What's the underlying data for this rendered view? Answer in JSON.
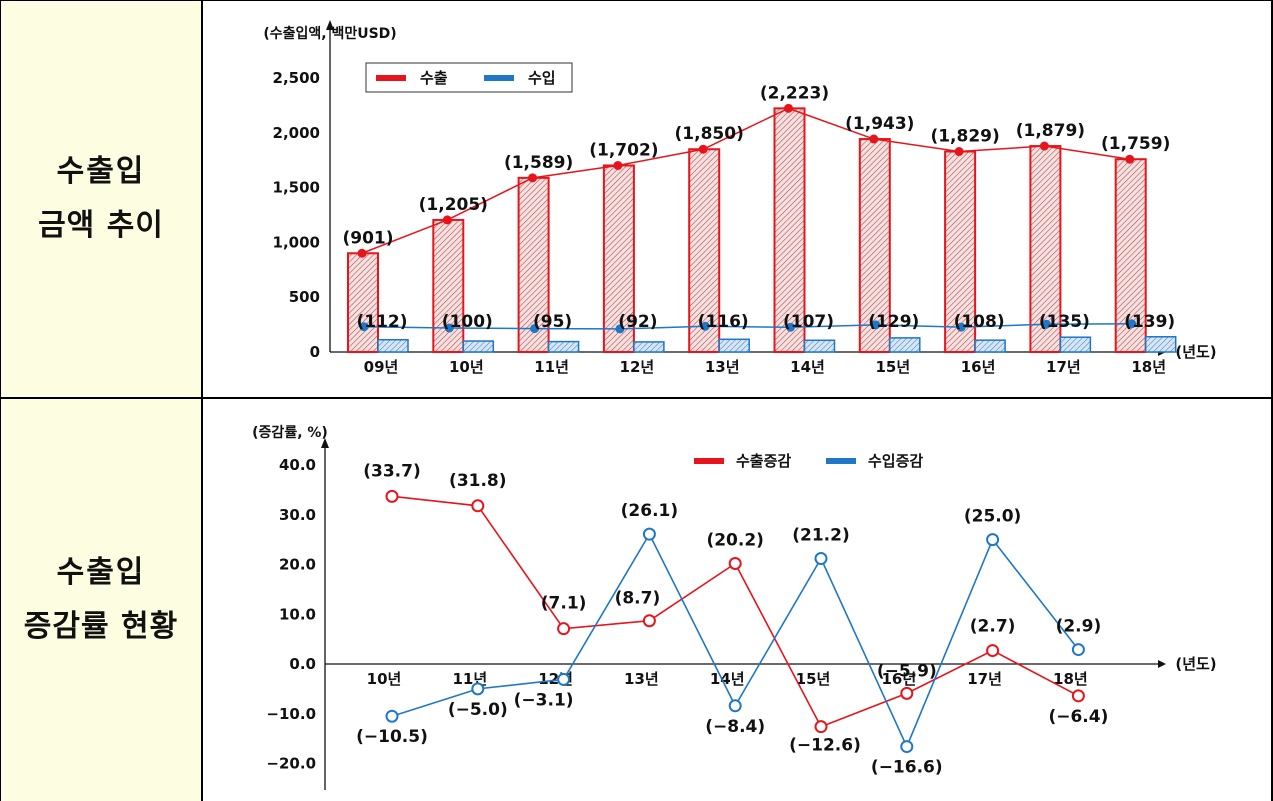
{
  "rows": [
    {
      "label_line1": "수출입",
      "label_line2": "금액  추이"
    },
    {
      "label_line1": "수출입",
      "label_line2": "증감률  현황"
    }
  ],
  "chart_data": [
    {
      "type": "bar",
      "unit_label": "(수출입액, 백만USD)",
      "x_axis_label": "(년도)",
      "categories": [
        "09년",
        "10년",
        "11년",
        "12년",
        "13년",
        "14년",
        "15년",
        "16년",
        "17년",
        "18년"
      ],
      "series": [
        {
          "name": "수출",
          "color": "#e8141b",
          "values": [
            901,
            1205,
            1589,
            1702,
            1850,
            2223,
            1943,
            1829,
            1879,
            1759
          ],
          "labels": [
            "(901)",
            "(1,205)",
            "(1,589)",
            "(1,702)",
            "(1,850)",
            "(2,223)",
            "(1,943)",
            "(1,829)",
            "(1,879)",
            "(1,759)"
          ]
        },
        {
          "name": "수입",
          "color": "#1f77c8",
          "values": [
            112,
            100,
            95,
            92,
            116,
            107,
            129,
            108,
            135,
            139
          ],
          "labels": [
            "(112)",
            "(100)",
            "(95)",
            "(92)",
            "(116)",
            "(107)",
            "(129)",
            "(108)",
            "(135)",
            "(139)"
          ]
        }
      ],
      "y_ticks": [
        "2,500",
        "2,000",
        "1,500",
        "1,000",
        "500",
        "0"
      ],
      "ylim": [
        0,
        2500
      ]
    },
    {
      "type": "line",
      "unit_label": "(증감률, %)",
      "x_axis_label": "(년도)",
      "categories": [
        "10년",
        "11년",
        "12년",
        "13년",
        "14년",
        "15년",
        "16년",
        "17년",
        "18년"
      ],
      "series": [
        {
          "name": "수출증감",
          "color": "#e8141b",
          "values": [
            33.7,
            31.8,
            7.1,
            8.7,
            20.2,
            -12.6,
            -5.9,
            2.7,
            -6.4
          ],
          "labels": [
            "(33.7)",
            "(31.8)",
            "(7.1)",
            "(8.7)",
            "(20.2)",
            "(−12.6)",
            "(−5.9)",
            "(2.7)",
            "(−6.4)"
          ]
        },
        {
          "name": "수입증감",
          "color": "#1f77c8",
          "values": [
            -10.5,
            -5.0,
            -3.1,
            26.1,
            -8.4,
            21.2,
            -16.6,
            25.0,
            2.9
          ],
          "labels": [
            "(−10.5)",
            "(−5.0)",
            "(−3.1)",
            "(26.1)",
            "(−8.4)",
            "(21.2)",
            "(−16.6)",
            "(25.0)",
            "(2.9)"
          ]
        }
      ],
      "y_ticks": [
        "40.0",
        "30.0",
        "20.0",
        "10.0",
        "0.0",
        "−10.0",
        "−20.0"
      ],
      "ylim": [
        -20,
        40
      ]
    }
  ]
}
